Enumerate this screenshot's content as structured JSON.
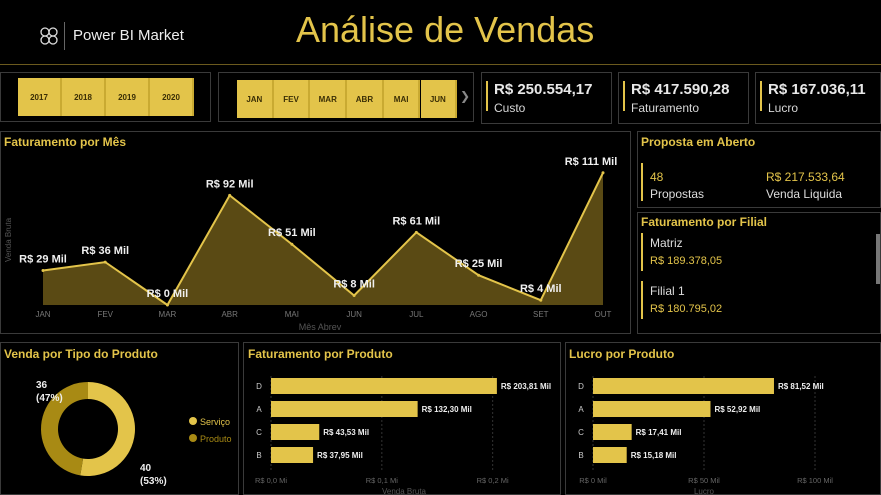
{
  "header": {
    "brand": "Power BI Market",
    "title": "Análise de Vendas"
  },
  "years": [
    "2017",
    "2018",
    "2019",
    "2020"
  ],
  "months": [
    "JAN",
    "FEV",
    "MAR",
    "ABR",
    "MAI",
    "JUN"
  ],
  "kpis": [
    {
      "value": "R$ 250.554,17",
      "label": "Custo"
    },
    {
      "value": "R$ 417.590,28",
      "label": "Faturamento"
    },
    {
      "value": "R$ 167.036,11",
      "label": "Lucro"
    }
  ],
  "proposta": {
    "title": "Proposta em Aberto",
    "count": "48",
    "count_label": "Propostas",
    "value": "R$ 217.533,64",
    "value_label": "Venda Liquida"
  },
  "filial": {
    "title": "Faturamento por Filial",
    "items": [
      {
        "name": "Matriz",
        "value": "R$ 189.378,05"
      },
      {
        "name": "Filial 1",
        "value": "R$ 180.795,02"
      }
    ]
  },
  "colors": {
    "accent": "#e3c44a",
    "area_fill": "#5a4a14",
    "donut_dark": "#a88a14"
  },
  "chart_data": [
    {
      "type": "area",
      "title": "Faturamento por Mês",
      "ylabel": "Venda Bruta",
      "xlabel": "Mês Abrev",
      "categories": [
        "JAN",
        "FEV",
        "MAR",
        "ABR",
        "MAI",
        "JUN",
        "JUL",
        "AGO",
        "SET",
        "OUT"
      ],
      "values": [
        29,
        36,
        0,
        92,
        51,
        8,
        61,
        25,
        4,
        111
      ],
      "labels": [
        "R$ 29 Mil",
        "R$ 36 Mil",
        "R$ 0 Mil",
        "R$ 92 Mil",
        "R$ 51 Mil",
        "R$ 8 Mil",
        "R$ 61 Mil",
        "R$ 25 Mil",
        "R$ 4 Mil",
        "R$ 111 Mil"
      ],
      "ylim": [
        0,
        115
      ]
    },
    {
      "type": "pie",
      "title": "Venda por Tipo do Produto",
      "series": [
        {
          "name": "Serviço",
          "value": 40,
          "label": "40",
          "pct": "(53%)"
        },
        {
          "name": "Produto",
          "value": 36,
          "label": "36",
          "pct": "(47%)"
        }
      ]
    },
    {
      "type": "bar",
      "title": "Faturamento por Produto",
      "categories": [
        "D",
        "A",
        "C",
        "B"
      ],
      "values": [
        203.81,
        132.3,
        43.53,
        37.95
      ],
      "labels": [
        "R$ 203,81 Mil",
        "R$ 132,30 Mil",
        "R$ 43,53 Mil",
        "R$ 37,95 Mil"
      ],
      "ticks": [
        "R$ 0,0 Mi",
        "R$ 0,1 Mi",
        "R$ 0,2 Mi"
      ],
      "xlabel": "Venda Bruta",
      "xlim": [
        0,
        240
      ]
    },
    {
      "type": "bar",
      "title": "Lucro por Produto",
      "categories": [
        "D",
        "A",
        "C",
        "B"
      ],
      "values": [
        81.52,
        52.92,
        17.41,
        15.18
      ],
      "labels": [
        "R$ 81,52 Mil",
        "R$ 52,92 Mil",
        "R$ 17,41 Mil",
        "R$ 15,18 Mil"
      ],
      "ticks": [
        "R$ 0 Mil",
        "R$ 50 Mil",
        "R$ 100 Mil"
      ],
      "xlabel": "Lucro",
      "xlim": [
        0,
        100
      ]
    }
  ]
}
